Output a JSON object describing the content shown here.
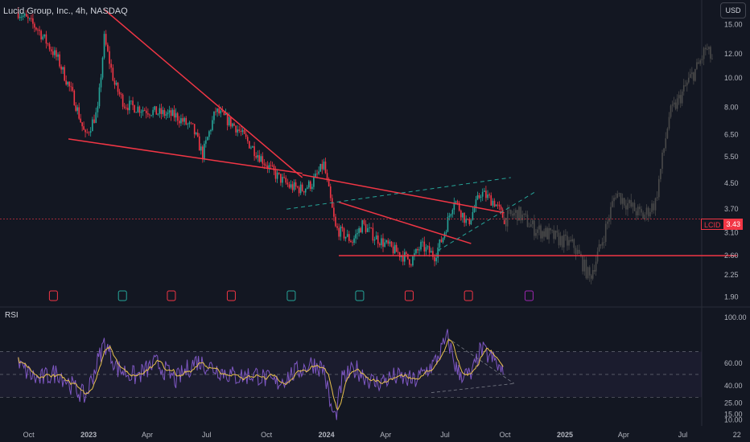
{
  "header": {
    "title": "Lucid Group, Inc., 4h, NASDAQ",
    "currency_button": "USD"
  },
  "price_tag": {
    "symbol": "LCID",
    "value": "3.43"
  },
  "rsi_panel": {
    "label": "RSI"
  },
  "colors": {
    "background": "#131722",
    "up": "#26a69a",
    "down": "#f23645",
    "projection": "#4a4a4a",
    "trendline": "#f23645",
    "channel": "#26a69a",
    "rsi": "#7e57c2",
    "rsi_ma": "#e9c24c"
  },
  "chart_data": [
    {
      "type": "line",
      "subtype": "candlestick-4h",
      "title": "Lucid Group, Inc., 4h, NASDAQ",
      "y_scale": "log",
      "y_ticks": [
        15.0,
        12.0,
        10.0,
        8.0,
        6.5,
        5.5,
        4.5,
        3.7,
        3.1,
        2.6,
        2.25,
        1.9
      ],
      "y_tick_labels": [
        "15.00",
        "12.00",
        "10.00",
        "8.00",
        "6.50",
        "5.50",
        "4.50",
        "3.70",
        "3.10",
        "2.60",
        "2.25",
        "1.90"
      ],
      "x_ticks": [
        "Oct",
        "2023",
        "Apr",
        "Jul",
        "Oct",
        "2024",
        "Apr",
        "Jul",
        "Oct",
        "2025",
        "Apr",
        "Jul",
        "22"
      ],
      "last_price": 3.43,
      "series": [
        {
          "x": [
            "2022-09-15",
            "2022-10-15",
            "2022-11-15",
            "2022-12-10",
            "2022-12-27",
            "2023-01-15",
            "2023-01-25",
            "2023-02-10",
            "2023-02-25",
            "2023-03-15",
            "2023-04-15",
            "2023-05-15",
            "2023-06-10",
            "2023-06-25",
            "2023-07-15",
            "2023-08-15",
            "2023-09-15",
            "2023-10-15",
            "2023-11-05",
            "2023-11-25",
            "2023-12-10",
            "2023-12-28",
            "2024-01-15",
            "2024-02-10",
            "2024-02-25",
            "2024-03-15",
            "2024-04-15",
            "2024-05-10",
            "2024-05-25",
            "2024-06-15",
            "2024-06-28",
            "2024-07-15",
            "2024-08-05",
            "2024-08-25",
            "2024-09-15",
            "2024-09-30"
          ],
          "y": [
            16.5,
            14.5,
            11.5,
            8.5,
            6.4,
            7.8,
            13.5,
            9.5,
            8.2,
            8.0,
            7.7,
            7.5,
            6.8,
            5.6,
            7.8,
            6.9,
            5.7,
            4.8,
            4.4,
            4.3,
            4.5,
            5.2,
            3.2,
            2.9,
            3.3,
            3.0,
            2.7,
            2.5,
            2.8,
            2.6,
            3.0,
            4.0,
            3.3,
            4.2,
            3.9,
            3.43
          ]
        },
        {
          "name": "projection",
          "x": [
            "2024-09-30",
            "2024-10-20",
            "2024-11-15",
            "2024-12-15",
            "2025-01-15",
            "2025-02-08",
            "2025-02-25",
            "2025-03-20",
            "2025-04-10",
            "2025-05-01",
            "2025-05-20",
            "2025-06-10",
            "2025-06-25",
            "2025-07-10",
            "2025-07-25",
            "2025-08-05",
            "2025-08-15"
          ],
          "y": [
            3.43,
            3.6,
            3.2,
            3.0,
            2.8,
            2.2,
            2.8,
            4.2,
            3.8,
            3.5,
            3.9,
            7.5,
            8.5,
            9.8,
            11.0,
            12.5,
            11.5
          ]
        }
      ]
    },
    {
      "type": "line",
      "title": "RSI",
      "y_ticks": [
        100,
        60,
        40,
        25,
        15,
        10
      ],
      "y_tick_labels": [
        "100.00",
        "60.00",
        "40.00",
        "25.00",
        "15.00",
        "10.00"
      ],
      "x_ticks": [
        "Oct",
        "2023",
        "Apr",
        "Jul",
        "Oct",
        "2024",
        "Apr",
        "Jul",
        "Oct",
        "2025",
        "Apr",
        "Jul",
        "22"
      ],
      "series": [
        {
          "x": [
            "2022-09-15",
            "2022-10-15",
            "2022-11-15",
            "2022-12-10",
            "2022-12-27",
            "2023-01-25",
            "2023-02-15",
            "2023-03-15",
            "2023-04-15",
            "2023-05-15",
            "2023-06-15",
            "2023-07-15",
            "2023-08-15",
            "2023-09-15",
            "2023-10-15",
            "2023-11-15",
            "2023-12-10",
            "2023-12-28",
            "2024-01-08",
            "2024-01-15",
            "2024-01-25",
            "2024-02-15",
            "2024-03-15",
            "2024-04-15",
            "2024-05-15",
            "2024-06-15",
            "2024-07-05",
            "2024-07-20",
            "2024-08-10",
            "2024-08-25",
            "2024-09-15",
            "2024-09-30"
          ],
          "y": [
            58,
            45,
            52,
            38,
            30,
            78,
            55,
            48,
            60,
            45,
            62,
            55,
            48,
            50,
            42,
            52,
            60,
            55,
            20,
            12,
            45,
            55,
            42,
            48,
            44,
            60,
            82,
            52,
            48,
            72,
            62,
            48
          ]
        }
      ]
    }
  ]
}
